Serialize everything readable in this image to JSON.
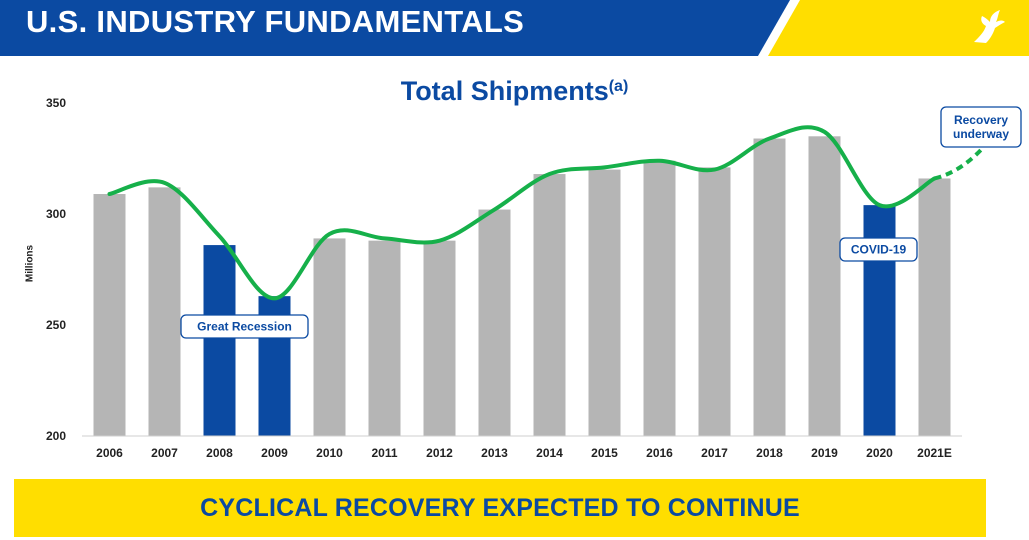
{
  "header": {
    "title": "U.S. INDUSTRY FUNDAMENTALS",
    "logo": "winged-foot-icon"
  },
  "colors": {
    "blue": "#0b4aa2",
    "yellow": "#ffde00",
    "gray": "#b5b5b5",
    "green": "#16b04a"
  },
  "chart_data": {
    "type": "bar",
    "title": "Total Shipments",
    "title_superscript": "(a)",
    "ylabel": "Millions",
    "ylim": [
      200,
      350
    ],
    "yticks": [
      200,
      250,
      300,
      350
    ],
    "categories": [
      "2006",
      "2007",
      "2008",
      "2009",
      "2010",
      "2011",
      "2012",
      "2013",
      "2014",
      "2015",
      "2016",
      "2017",
      "2018",
      "2019",
      "2020",
      "2021E"
    ],
    "values": [
      309,
      312,
      286,
      263,
      289,
      288,
      288,
      302,
      318,
      320,
      324,
      321,
      334,
      335,
      304,
      316
    ],
    "highlighted": [
      "2008",
      "2009",
      "2020"
    ],
    "trend_line": [
      309,
      314,
      290,
      262,
      291,
      289,
      288,
      302,
      318,
      321,
      324,
      320,
      334,
      337,
      304,
      316
    ],
    "trend_projection_end": 329,
    "grid": false,
    "annotations": [
      {
        "text": "Great Recession",
        "near": "2009"
      },
      {
        "text": "COVID-19",
        "near": "2020"
      },
      {
        "text": "Recovery underway",
        "near": "2021E"
      }
    ]
  },
  "footer": {
    "text": "CYCLICAL RECOVERY EXPECTED TO CONTINUE"
  }
}
